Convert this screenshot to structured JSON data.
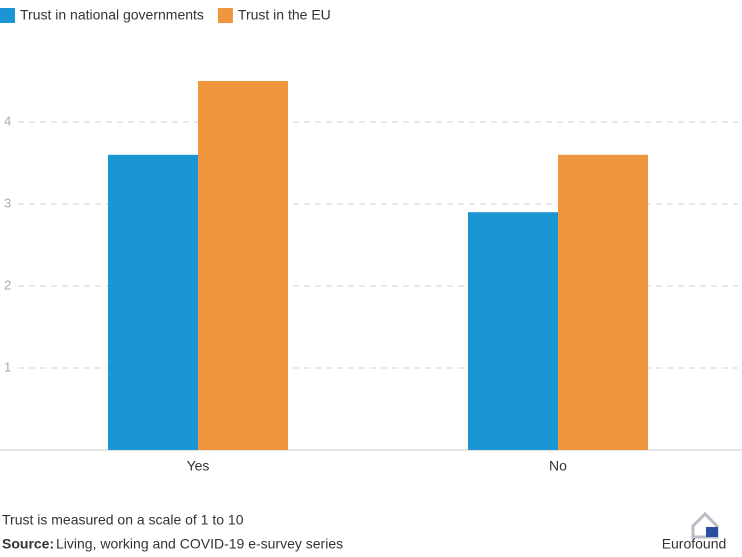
{
  "chart_data": {
    "type": "bar",
    "categories": [
      "Yes",
      "No"
    ],
    "series": [
      {
        "name": "Trust in national governments",
        "color": "#1a96d4",
        "values": [
          3.6,
          2.9
        ]
      },
      {
        "name": "Trust in the EU",
        "color": "#f0963f",
        "values": [
          4.5,
          3.6
        ]
      }
    ],
    "ylim": [
      0,
      5
    ],
    "yticks": [
      1,
      2,
      3,
      4
    ],
    "grid": true,
    "note": "Trust is measured on a scale of 1 to 10",
    "source_label": "Source:",
    "source": "Living, working and COVID-19 e-survey series",
    "logo": "Eurofound"
  }
}
